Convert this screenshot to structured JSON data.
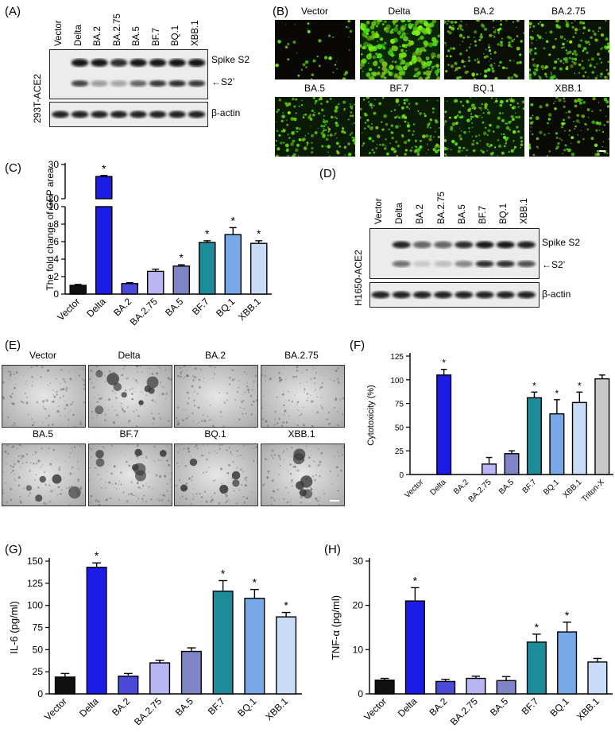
{
  "panel_labels": {
    "A": "(A)",
    "B": "(B)",
    "C": "(C)",
    "D": "(D)",
    "E": "(E)",
    "F": "(F)",
    "G": "(G)",
    "H": "(H)"
  },
  "lanes": [
    "Vector",
    "Delta",
    "BA.2",
    "BA.2.75",
    "BA.5",
    "BF.7",
    "BQ.1",
    "XBB.1"
  ],
  "blot_A": {
    "cell_line": "293T-ACE2",
    "band1": "Spike S2",
    "band2": "←S2’",
    "loading": "β-actin"
  },
  "blot_D": {
    "cell_line": "H1650-ACE2",
    "band1": "Spike S2",
    "band2": "←S2’",
    "loading": "β-actin"
  },
  "fluor_tiles": [
    "Vector",
    "Delta",
    "BA.2",
    "BA.2.75",
    "BA.5",
    "BF.7",
    "BQ.1",
    "XBB.1"
  ],
  "brightfield_tiles": [
    "Vector",
    "Delta",
    "BA.2",
    "BA.2.75",
    "BA.5",
    "BF.7",
    "BQ.1",
    "XBB.1"
  ],
  "chart_data": [
    {
      "id": "C",
      "type": "bar",
      "ylabel": "The fold change of GFP area",
      "categories": [
        "Vector",
        "Delta",
        "BA.2",
        "BA.2.75",
        "BA.5",
        "BF.7",
        "BQ.1",
        "XBB.1"
      ],
      "values": [
        1.0,
        26.5,
        1.2,
        2.6,
        3.2,
        5.9,
        6.8,
        5.8
      ],
      "errors": [
        0.1,
        0.3,
        0.1,
        0.25,
        0.15,
        0.2,
        0.8,
        0.3
      ],
      "significant": [
        false,
        true,
        false,
        false,
        true,
        true,
        true,
        true
      ],
      "yticks_lower": [
        "0",
        "2",
        "4",
        "6",
        "8",
        "10"
      ],
      "yticks_upper": [
        "20",
        "30"
      ],
      "ylim": [
        0,
        30
      ],
      "axis_break": [
        10,
        20
      ],
      "colors": [
        "#111111",
        "#1c1ce6",
        "#4a4ad6",
        "#b9b4f2",
        "#7f84c6",
        "#1d8c9a",
        "#77a9e8",
        "#c9dcf7"
      ]
    },
    {
      "id": "F",
      "type": "bar",
      "ylabel": "Cytotoxicity (%)",
      "categories": [
        "Vector",
        "Delta",
        "BA.2",
        "BA.2.75",
        "BA.5",
        "BF.7",
        "BQ.1",
        "XBB.1",
        "Triton-X"
      ],
      "values": [
        0,
        105,
        0,
        11,
        22,
        81,
        64,
        76,
        101
      ],
      "errors": [
        0,
        6,
        0,
        7,
        3,
        6,
        15,
        11,
        4
      ],
      "significant": [
        false,
        true,
        false,
        false,
        false,
        true,
        true,
        true,
        false
      ],
      "yticks": [
        "0",
        "25",
        "50",
        "75",
        "100",
        "125"
      ],
      "ylim": [
        0,
        125
      ],
      "colors": [
        "#111111",
        "#1c1ce6",
        "#4a4ad6",
        "#b9b4f2",
        "#7f84c6",
        "#1d8c9a",
        "#77a9e8",
        "#c9dcf7",
        "#c8c8c8"
      ]
    },
    {
      "id": "G",
      "type": "bar",
      "ylabel": "IL-6 (pg/ml)",
      "categories": [
        "Vector",
        "Delta",
        "BA.2",
        "BA.2.75",
        "BA.5",
        "BF.7",
        "BQ.1",
        "XBB.1"
      ],
      "values": [
        19,
        143,
        20,
        35,
        48,
        116,
        108,
        87
      ],
      "errors": [
        4,
        5,
        3,
        3,
        4,
        12,
        10,
        5
      ],
      "significant": [
        false,
        true,
        false,
        false,
        false,
        true,
        true,
        true
      ],
      "yticks": [
        "0",
        "25",
        "50",
        "75",
        "100",
        "125",
        "150"
      ],
      "ylim": [
        0,
        150
      ],
      "colors": [
        "#111111",
        "#1c1ce6",
        "#4a4ad6",
        "#b9b4f2",
        "#7f84c6",
        "#1d8c9a",
        "#77a9e8",
        "#c9dcf7"
      ]
    },
    {
      "id": "H",
      "type": "bar",
      "ylabel": "TNF-α (pg/ml)",
      "categories": [
        "Vector",
        "Delta",
        "BA.2",
        "BA.2.75",
        "BA.5",
        "BF.7",
        "BQ.1",
        "XBB.1"
      ],
      "values": [
        3.1,
        21,
        2.8,
        3.5,
        3.0,
        11.7,
        14,
        7.2
      ],
      "errors": [
        0.4,
        3,
        0.5,
        0.5,
        0.9,
        1.8,
        2.2,
        0.8
      ],
      "significant": [
        false,
        true,
        false,
        false,
        false,
        true,
        true,
        false
      ],
      "yticks": [
        "0",
        "10",
        "20",
        "30"
      ],
      "ylim": [
        0,
        30
      ],
      "colors": [
        "#111111",
        "#1c1ce6",
        "#4a4ad6",
        "#b9b4f2",
        "#7f84c6",
        "#1d8c9a",
        "#77a9e8",
        "#c9dcf7"
      ]
    }
  ]
}
